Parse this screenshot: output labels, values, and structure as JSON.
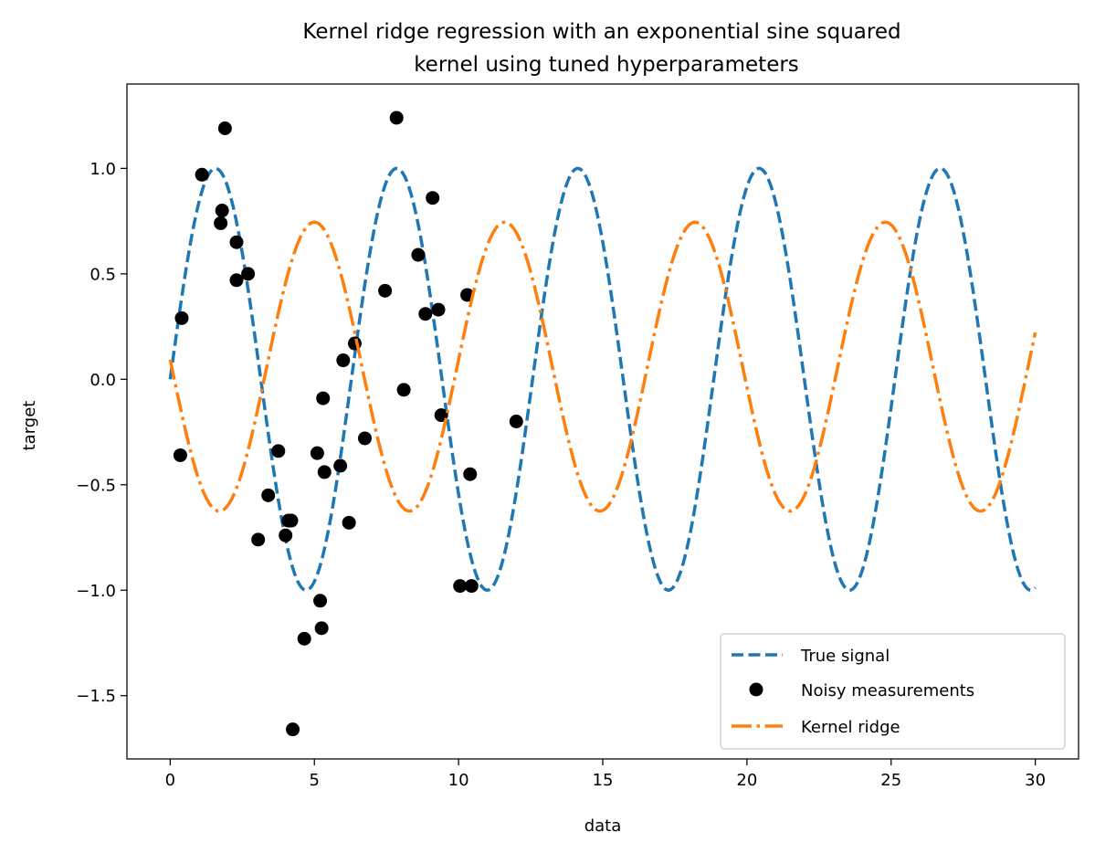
{
  "chart_data": {
    "type": "line",
    "title": [
      "Kernel ridge regression with an exponential sine squared",
      "kernel using tuned hyperparameters"
    ],
    "xlabel": "data",
    "ylabel": "target",
    "xlim": [
      -1.5,
      31.5
    ],
    "ylim": [
      -1.8,
      1.4
    ],
    "xticks": [
      0,
      5,
      10,
      15,
      20,
      25,
      30
    ],
    "xtick_labels": [
      "0",
      "5",
      "10",
      "15",
      "20",
      "25",
      "30"
    ],
    "yticks": [
      1.0,
      0.5,
      0.0,
      -0.5,
      -1.0,
      -1.5
    ],
    "ytick_labels": [
      "1.0",
      "0.5",
      "0.0",
      "−0.5",
      "−1.0",
      "−1.5"
    ],
    "grid": false,
    "legend_position": "lower-right",
    "series": [
      {
        "name": "True signal",
        "kind": "line",
        "style": "dashed",
        "color": "#1f77b4",
        "function": "sin(x)",
        "x_range": [
          0,
          30
        ],
        "samples": 600
      },
      {
        "name": "Noisy measurements",
        "kind": "scatter",
        "color": "#000000",
        "points": [
          [
            0.4,
            0.29
          ],
          [
            0.35,
            -0.36
          ],
          [
            1.1,
            0.97
          ],
          [
            1.9,
            1.19
          ],
          [
            1.8,
            0.8
          ],
          [
            1.75,
            0.74
          ],
          [
            2.3,
            0.65
          ],
          [
            2.3,
            0.47
          ],
          [
            2.7,
            0.5
          ],
          [
            3.05,
            -0.76
          ],
          [
            3.4,
            -0.55
          ],
          [
            3.75,
            -0.34
          ],
          [
            4.0,
            -0.74
          ],
          [
            4.1,
            -0.67
          ],
          [
            4.2,
            -0.67
          ],
          [
            4.25,
            -1.66
          ],
          [
            4.65,
            -1.23
          ],
          [
            5.1,
            -0.35
          ],
          [
            5.2,
            -1.05
          ],
          [
            5.25,
            -1.18
          ],
          [
            5.3,
            -0.09
          ],
          [
            5.35,
            -0.44
          ],
          [
            5.9,
            -0.41
          ],
          [
            6.0,
            0.09
          ],
          [
            6.2,
            -0.68
          ],
          [
            6.4,
            0.17
          ],
          [
            6.75,
            -0.28
          ],
          [
            7.45,
            0.42
          ],
          [
            7.85,
            1.24
          ],
          [
            8.1,
            -0.05
          ],
          [
            8.6,
            0.59
          ],
          [
            8.85,
            0.31
          ],
          [
            9.1,
            0.86
          ],
          [
            9.3,
            0.33
          ],
          [
            9.4,
            -0.17
          ],
          [
            10.05,
            -0.98
          ],
          [
            10.3,
            0.4
          ],
          [
            10.4,
            -0.45
          ],
          [
            10.45,
            -0.98
          ],
          [
            12.0,
            -0.2
          ]
        ]
      },
      {
        "name": "Kernel ridge",
        "kind": "line",
        "style": "dashdot",
        "color": "#ff7f0e",
        "function": "0.06 - 0.685*cos(2*pi*(x-1.7)/6.6)",
        "x_range": [
          0,
          30
        ],
        "samples": 600
      }
    ]
  }
}
